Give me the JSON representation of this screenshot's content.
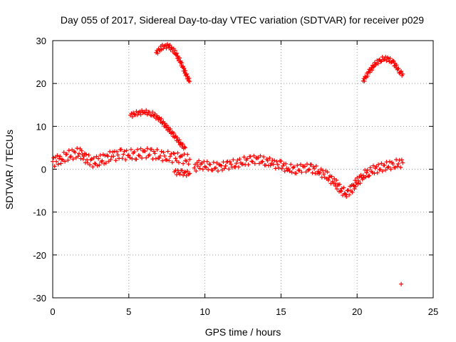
{
  "chart_data": {
    "type": "scatter",
    "title": "Day 055 of 2017, Sidereal Day-to-day VTEC variation (SDTVAR) for receiver p029",
    "xlabel": "GPS time / hours",
    "ylabel": "SDTVAR / TECUs",
    "xlim": [
      0,
      25
    ],
    "ylim": [
      -30,
      30
    ],
    "xticks": [
      0,
      5,
      10,
      15,
      20,
      25
    ],
    "yticks": [
      -30,
      -20,
      -10,
      0,
      10,
      20,
      30
    ],
    "xtick_labels": [
      "0",
      "5",
      "10",
      "15",
      "20",
      "25"
    ],
    "ytick_labels": [
      "-30",
      "-20",
      "-10",
      "0",
      "10",
      "20",
      "30"
    ],
    "grid": true,
    "marker": "+",
    "color": "#ff0000",
    "series": [
      {
        "name": "main-trace",
        "band": 1.2,
        "points": [
          [
            0,
            1.8
          ],
          [
            0.3,
            2.0
          ],
          [
            0.6,
            2.6
          ],
          [
            1.0,
            3.2
          ],
          [
            1.4,
            3.6
          ],
          [
            1.8,
            3.8
          ],
          [
            2.0,
            3.2
          ],
          [
            2.3,
            2.2
          ],
          [
            2.7,
            1.6
          ],
          [
            3.0,
            2.0
          ],
          [
            3.5,
            2.6
          ],
          [
            4.0,
            3.2
          ],
          [
            4.5,
            3.4
          ],
          [
            5.0,
            3.4
          ],
          [
            5.5,
            3.5
          ],
          [
            6.0,
            3.8
          ],
          [
            6.5,
            3.6
          ],
          [
            7.0,
            3.3
          ],
          [
            7.5,
            3.0
          ],
          [
            8.0,
            2.7
          ],
          [
            8.5,
            2.5
          ],
          [
            9.0,
            2.3
          ]
        ]
      },
      {
        "name": "dip-segment",
        "band": 0.6,
        "points": [
          [
            8.0,
            -0.6
          ],
          [
            8.5,
            -0.9
          ],
          [
            9.0,
            -1.0
          ]
        ]
      },
      {
        "name": "midday-trace",
        "band": 1.0,
        "points": [
          [
            9.3,
            0.3
          ],
          [
            9.6,
            1.0
          ],
          [
            10.0,
            0.9
          ],
          [
            10.5,
            0.7
          ],
          [
            11.0,
            0.5
          ],
          [
            11.5,
            1.0
          ],
          [
            12.0,
            1.3
          ],
          [
            12.5,
            1.8
          ],
          [
            13.0,
            2.1
          ],
          [
            13.5,
            2.3
          ],
          [
            14.0,
            1.9
          ],
          [
            14.5,
            1.3
          ],
          [
            15.0,
            0.9
          ],
          [
            15.5,
            0.2
          ],
          [
            16.0,
            0.0
          ],
          [
            16.5,
            0.3
          ],
          [
            17.0,
            0.2
          ],
          [
            17.5,
            -0.5
          ],
          [
            18.0,
            -1.5
          ],
          [
            18.5,
            -3.0
          ],
          [
            19.0,
            -5.0
          ],
          [
            19.3,
            -5.5
          ],
          [
            19.6,
            -4.8
          ],
          [
            20.0,
            -3.0
          ],
          [
            20.4,
            -1.5
          ],
          [
            20.8,
            -0.5
          ],
          [
            21.2,
            0.0
          ],
          [
            21.6,
            0.4
          ],
          [
            22.0,
            0.8
          ],
          [
            22.5,
            1.2
          ],
          [
            23.0,
            1.5
          ]
        ]
      },
      {
        "name": "arc-high",
        "band": 0.5,
        "points": [
          [
            6.8,
            27.2
          ],
          [
            7.2,
            28.5
          ],
          [
            7.6,
            28.8
          ],
          [
            8.0,
            27.5
          ],
          [
            8.4,
            25.0
          ],
          [
            8.8,
            21.8
          ],
          [
            9.0,
            20.5
          ]
        ]
      },
      {
        "name": "arc-mid",
        "band": 0.5,
        "points": [
          [
            5.1,
            12.6
          ],
          [
            5.5,
            13.0
          ],
          [
            6.0,
            13.4
          ],
          [
            6.5,
            13.0
          ],
          [
            7.0,
            11.8
          ],
          [
            7.5,
            9.8
          ],
          [
            8.0,
            7.8
          ],
          [
            8.5,
            5.5
          ],
          [
            8.7,
            5.0
          ]
        ]
      },
      {
        "name": "arc-late",
        "band": 0.5,
        "points": [
          [
            20.4,
            20.6
          ],
          [
            20.8,
            22.8
          ],
          [
            21.2,
            24.6
          ],
          [
            21.6,
            25.7
          ],
          [
            22.0,
            25.8
          ],
          [
            22.4,
            24.8
          ],
          [
            22.8,
            22.8
          ],
          [
            23.0,
            22.2
          ]
        ]
      },
      {
        "name": "outlier",
        "band": 0,
        "points": [
          [
            22.9,
            -26.8
          ]
        ]
      }
    ]
  }
}
